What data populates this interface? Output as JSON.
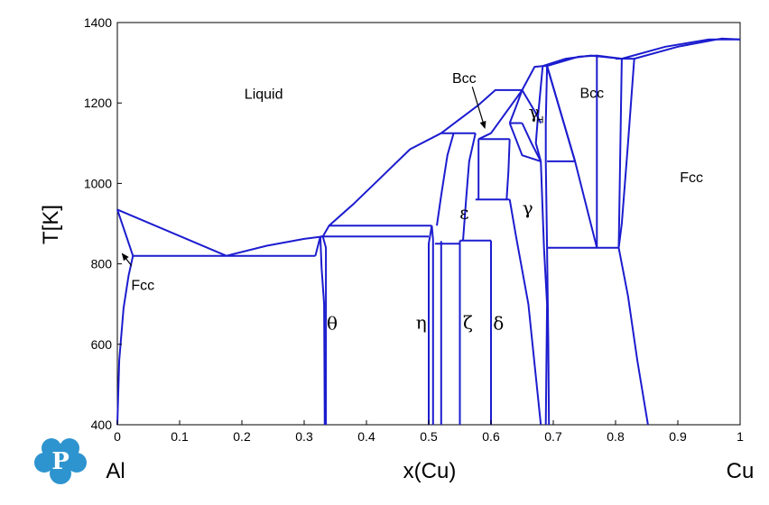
{
  "chart_data": {
    "type": "line",
    "xlabel": "x(Cu)",
    "ylabel": "T[K]",
    "xlim": [
      0,
      1
    ],
    "ylim": [
      400,
      1400
    ],
    "x_ticks": [
      "0",
      "0.1",
      "0.2",
      "0.3",
      "0.4",
      "0.5",
      "0.6",
      "0.7",
      "0.8",
      "0.9",
      "1"
    ],
    "y_ticks": [
      "400",
      "600",
      "800",
      "1000",
      "1200",
      "1400"
    ],
    "endpoint_labels": {
      "left": "Al",
      "right": "Cu"
    },
    "line_color": "#1c1ccf",
    "phase_labels": [
      {
        "text": "Liquid",
        "x": 0.235,
        "y": 1210,
        "style": "sans"
      },
      {
        "text": "Fcc",
        "x": 0.041,
        "y": 735,
        "style": "sans"
      },
      {
        "text": "Bcc",
        "x": 0.557,
        "y": 1250,
        "style": "sans"
      },
      {
        "text": "Bcc",
        "x": 0.762,
        "y": 1213,
        "style": "sans"
      },
      {
        "text": "Fcc",
        "x": 0.922,
        "y": 1003,
        "style": "sans"
      },
      {
        "text": "θ",
        "x": 0.345,
        "y": 637,
        "style": "greek"
      },
      {
        "text": "η",
        "x": 0.488,
        "y": 639,
        "style": "greek"
      },
      {
        "text": "ζ",
        "x": 0.563,
        "y": 639,
        "style": "greek"
      },
      {
        "text": "δ",
        "x": 0.612,
        "y": 637,
        "style": "greek"
      },
      {
        "text": "ε",
        "x": 0.557,
        "y": 912,
        "style": "greek"
      },
      {
        "text": "γ",
        "x": 0.659,
        "y": 923,
        "style": "greek"
      },
      {
        "text": "γ",
        "x": 0.669,
        "y": 1162,
        "style": "greek"
      }
    ],
    "subscript": {
      "text": "H",
      "x": 0.679,
      "y": 1150
    },
    "arrows": [
      {
        "from": [
          0.57,
          1240
        ],
        "to": [
          0.59,
          1138
        ]
      },
      {
        "from": [
          0.023,
          795
        ],
        "to": [
          0.008,
          825
        ]
      }
    ],
    "boundary_lines": [
      {
        "points": [
          [
            0,
            935
          ],
          [
            0.025,
            820
          ]
        ]
      },
      {
        "points": [
          [
            0,
            935
          ],
          [
            0.175,
            820
          ]
        ]
      },
      {
        "points": [
          [
            0,
            400
          ],
          [
            0.003,
            560
          ],
          [
            0.01,
            690
          ],
          [
            0.018,
            770
          ],
          [
            0.025,
            820
          ]
        ]
      },
      {
        "points": [
          [
            0.025,
            820
          ],
          [
            0.318,
            820
          ]
        ]
      },
      {
        "points": [
          [
            0.175,
            820
          ],
          [
            0.24,
            845
          ],
          [
            0.3,
            862
          ],
          [
            0.33,
            868
          ]
        ]
      },
      {
        "points": [
          [
            0.318,
            820
          ],
          [
            0.326,
            868
          ]
        ]
      },
      {
        "points": [
          [
            0.326,
            868
          ],
          [
            0.5,
            868
          ]
        ]
      },
      {
        "points": [
          [
            0.33,
            868
          ],
          [
            0.34,
            895
          ],
          [
            0.5,
            895
          ],
          [
            0.505,
            895
          ]
        ]
      },
      {
        "points": [
          [
            0.33,
            868
          ],
          [
            0.335,
            840
          ],
          [
            0.335,
            700
          ],
          [
            0.335,
            400
          ]
        ]
      },
      {
        "points": [
          [
            0.326,
            868
          ],
          [
            0.328,
            790
          ],
          [
            0.332,
            700
          ],
          [
            0.333,
            400
          ]
        ]
      },
      {
        "points": [
          [
            0.34,
            895
          ],
          [
            0.38,
            950
          ],
          [
            0.43,
            1025
          ],
          [
            0.47,
            1085
          ],
          [
            0.52,
            1125
          ]
        ]
      },
      {
        "points": [
          [
            0.505,
            895
          ],
          [
            0.5,
            850
          ],
          [
            0.5,
            400
          ]
        ]
      },
      {
        "points": [
          [
            0.505,
            895
          ],
          [
            0.507,
            860
          ],
          [
            0.507,
            400
          ]
        ]
      },
      {
        "points": [
          [
            0.51,
            850
          ],
          [
            0.55,
            850
          ]
        ]
      },
      {
        "points": [
          [
            0.52,
            850
          ],
          [
            0.52,
            855
          ],
          [
            0.52,
            400
          ]
        ]
      },
      {
        "points": [
          [
            0.55,
            858
          ],
          [
            0.55,
            400
          ]
        ]
      },
      {
        "points": [
          [
            0.55,
            858
          ],
          [
            0.6,
            858
          ]
        ]
      },
      {
        "points": [
          [
            0.6,
            858
          ],
          [
            0.6,
            400
          ]
        ]
      },
      {
        "points": [
          [
            0.513,
            895
          ],
          [
            0.52,
            970
          ],
          [
            0.53,
            1070
          ],
          [
            0.54,
            1125
          ]
        ]
      },
      {
        "points": [
          [
            0.555,
            858
          ],
          [
            0.56,
            960
          ],
          [
            0.565,
            1055
          ],
          [
            0.575,
            1125
          ]
        ]
      },
      {
        "points": [
          [
            0.52,
            1125
          ],
          [
            0.575,
            1125
          ]
        ]
      },
      {
        "points": [
          [
            0.52,
            1125
          ],
          [
            0.58,
            1195
          ],
          [
            0.607,
            1232
          ],
          [
            0.65,
            1232
          ]
        ]
      },
      {
        "points": [
          [
            0.58,
            1110
          ],
          [
            0.63,
            1110
          ]
        ]
      },
      {
        "points": [
          [
            0.58,
            1110
          ],
          [
            0.6,
            1125
          ],
          [
            0.65,
            1232
          ]
        ]
      },
      {
        "points": [
          [
            0.58,
            1110
          ],
          [
            0.58,
            1030
          ],
          [
            0.58,
            960
          ]
        ]
      },
      {
        "points": [
          [
            0.575,
            960
          ],
          [
            0.63,
            960
          ]
        ]
      },
      {
        "points": [
          [
            0.63,
            1110
          ],
          [
            0.628,
            1030
          ],
          [
            0.625,
            960
          ]
        ]
      },
      {
        "points": [
          [
            0.63,
            1150
          ],
          [
            0.65,
            1150
          ]
        ]
      },
      {
        "points": [
          [
            0.63,
            1150
          ],
          [
            0.64,
            1190
          ],
          [
            0.65,
            1232
          ]
        ]
      },
      {
        "points": [
          [
            0.63,
            960
          ],
          [
            0.64,
            870
          ],
          [
            0.66,
            700
          ],
          [
            0.68,
            400
          ]
        ]
      },
      {
        "points": [
          [
            0.63,
            1150
          ],
          [
            0.64,
            1110
          ],
          [
            0.65,
            1070
          ],
          [
            0.68,
            1055
          ]
        ]
      },
      {
        "points": [
          [
            0.65,
            1150
          ],
          [
            0.665,
            1100
          ],
          [
            0.68,
            1055
          ]
        ]
      },
      {
        "points": [
          [
            0.65,
            1232
          ],
          [
            0.67,
            1290
          ],
          [
            0.683,
            1292
          ]
        ]
      },
      {
        "points": [
          [
            0.683,
            1292
          ],
          [
            0.69,
            1292
          ]
        ]
      },
      {
        "points": [
          [
            0.683,
            1292
          ],
          [
            0.675,
            1160
          ],
          [
            0.672,
            1100
          ],
          [
            0.68,
            1055
          ]
        ]
      },
      {
        "points": [
          [
            0.65,
            1232
          ],
          [
            0.67,
            1180
          ],
          [
            0.68,
            1150
          ]
        ]
      },
      {
        "points": [
          [
            0.69,
            1292
          ],
          [
            0.688,
            1150
          ],
          [
            0.688,
            1055
          ],
          [
            0.69,
            840
          ]
        ]
      },
      {
        "points": [
          [
            0.68,
            1055
          ],
          [
            0.685,
            840
          ],
          [
            0.69,
            700
          ],
          [
            0.688,
            400
          ]
        ]
      },
      {
        "points": [
          [
            0.69,
            1055
          ],
          [
            0.735,
            1055
          ]
        ]
      },
      {
        "points": [
          [
            0.69,
            1292
          ],
          [
            0.735,
            1055
          ]
        ]
      },
      {
        "points": [
          [
            0.69,
            840
          ],
          [
            0.805,
            840
          ]
        ]
      },
      {
        "points": [
          [
            0.69,
            840
          ],
          [
            0.692,
            600
          ],
          [
            0.693,
            400
          ]
        ]
      },
      {
        "points": [
          [
            0.69,
            1292
          ],
          [
            0.74,
            1315
          ],
          [
            0.77,
            1318
          ],
          [
            0.81,
            1310
          ]
        ]
      },
      {
        "points": [
          [
            0.683,
            1292
          ],
          [
            0.72,
            1310
          ],
          [
            0.76,
            1318
          ],
          [
            0.81,
            1310
          ]
        ]
      },
      {
        "points": [
          [
            0.77,
            1318
          ],
          [
            0.77,
            840
          ]
        ]
      },
      {
        "points": [
          [
            0.77,
            840
          ],
          [
            0.735,
            1055
          ],
          [
            0.69,
            1292
          ]
        ]
      },
      {
        "points": [
          [
            0.805,
            840
          ],
          [
            0.81,
            1310
          ]
        ]
      },
      {
        "points": [
          [
            0.8,
            1310
          ],
          [
            0.83,
            1310
          ]
        ]
      },
      {
        "points": [
          [
            0.83,
            1310
          ],
          [
            0.82,
            1100
          ],
          [
            0.81,
            900
          ],
          [
            0.805,
            840
          ]
        ]
      },
      {
        "points": [
          [
            0.805,
            840
          ],
          [
            0.82,
            720
          ],
          [
            0.835,
            560
          ],
          [
            0.852,
            400
          ]
        ]
      },
      {
        "points": [
          [
            0.81,
            1310
          ],
          [
            0.88,
            1340
          ],
          [
            0.95,
            1358
          ],
          [
            1,
            1358
          ]
        ]
      },
      {
        "points": [
          [
            0.83,
            1310
          ],
          [
            0.9,
            1340
          ],
          [
            0.97,
            1360
          ],
          [
            1,
            1358
          ]
        ]
      }
    ]
  }
}
